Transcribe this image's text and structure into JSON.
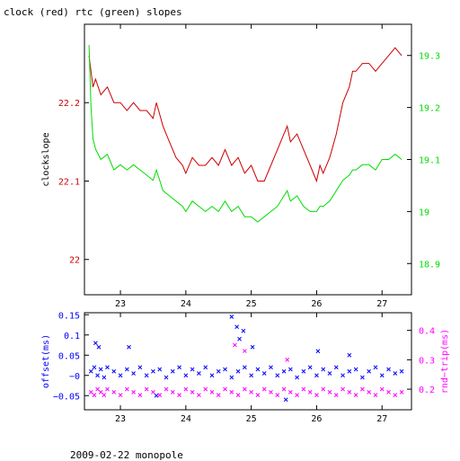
{
  "page": {
    "title": "clock (red) rtc (green) slopes",
    "footer": "2009-02-22 monopole"
  },
  "colors": {
    "clock": "#cc0000",
    "rtc": "#00dd00",
    "offset": "#0000ff",
    "rndtrip": "#ff00ff",
    "axis": "#000000"
  },
  "chart_data": [
    {
      "type": "line",
      "title": "clock (red) rtc (green) slopes",
      "ylabel": "clockslope",
      "y2label": "",
      "xlim": [
        22.45,
        27.45
      ],
      "ylim": [
        21.955,
        22.3
      ],
      "y2lim": [
        18.84,
        19.36
      ],
      "xticks": [
        23,
        24,
        25,
        26,
        27
      ],
      "yticks": [
        22,
        22.1,
        22.2
      ],
      "y2ticks": [
        18.9,
        19,
        19.1,
        19.2,
        19.3
      ],
      "series": [
        {
          "name": "clock",
          "axis": "left",
          "x": [
            22.52,
            22.55,
            22.58,
            22.62,
            22.7,
            22.8,
            22.9,
            23.0,
            23.1,
            23.2,
            23.3,
            23.4,
            23.5,
            23.55,
            23.65,
            23.75,
            23.85,
            23.95,
            24.0,
            24.1,
            24.2,
            24.3,
            24.4,
            24.5,
            24.6,
            24.7,
            24.8,
            24.9,
            25.0,
            25.1,
            25.2,
            25.3,
            25.4,
            25.5,
            25.55,
            25.6,
            25.7,
            25.8,
            25.9,
            26.0,
            26.05,
            26.1,
            26.2,
            26.3,
            26.4,
            26.5,
            26.55,
            26.6,
            26.7,
            26.8,
            26.9,
            27.0,
            27.1,
            27.2,
            27.3
          ],
          "y": [
            22.26,
            22.24,
            22.22,
            22.23,
            22.21,
            22.22,
            22.2,
            22.2,
            22.19,
            22.2,
            22.19,
            22.19,
            22.18,
            22.2,
            22.17,
            22.15,
            22.13,
            22.12,
            22.11,
            22.13,
            22.12,
            22.12,
            22.13,
            22.12,
            22.14,
            22.12,
            22.13,
            22.11,
            22.12,
            22.1,
            22.1,
            22.12,
            22.14,
            22.16,
            22.17,
            22.15,
            22.16,
            22.14,
            22.12,
            22.1,
            22.12,
            22.11,
            22.13,
            22.16,
            22.2,
            22.22,
            22.24,
            22.24,
            22.25,
            22.25,
            22.24,
            22.25,
            22.26,
            22.27,
            22.26
          ]
        },
        {
          "name": "rtc",
          "axis": "right",
          "x": [
            22.52,
            22.55,
            22.58,
            22.62,
            22.7,
            22.8,
            22.9,
            23.0,
            23.1,
            23.2,
            23.3,
            23.4,
            23.5,
            23.55,
            23.65,
            23.75,
            23.85,
            23.95,
            24.0,
            24.1,
            24.2,
            24.3,
            24.4,
            24.5,
            24.6,
            24.7,
            24.8,
            24.9,
            25.0,
            25.1,
            25.2,
            25.3,
            25.4,
            25.5,
            25.55,
            25.6,
            25.7,
            25.8,
            25.9,
            26.0,
            26.05,
            26.1,
            26.2,
            26.3,
            26.4,
            26.5,
            26.55,
            26.6,
            26.7,
            26.8,
            26.9,
            27.0,
            27.1,
            27.2,
            27.3
          ],
          "y": [
            19.32,
            19.2,
            19.14,
            19.12,
            19.1,
            19.11,
            19.08,
            19.09,
            19.08,
            19.09,
            19.08,
            19.07,
            19.06,
            19.08,
            19.04,
            19.03,
            19.02,
            19.01,
            19.0,
            19.02,
            19.01,
            19.0,
            19.01,
            19.0,
            19.02,
            19.0,
            19.01,
            18.99,
            18.99,
            18.98,
            18.99,
            19.0,
            19.01,
            19.03,
            19.04,
            19.02,
            19.03,
            19.01,
            19.0,
            19.0,
            19.01,
            19.01,
            19.02,
            19.04,
            19.06,
            19.07,
            19.08,
            19.08,
            19.09,
            19.09,
            19.08,
            19.1,
            19.1,
            19.11,
            19.1
          ]
        }
      ]
    },
    {
      "type": "scatter",
      "ylabel": "offset(ms)",
      "y2label": "rnd−trip(ms)",
      "xlim": [
        22.45,
        27.45
      ],
      "ylim": [
        -0.085,
        0.155
      ],
      "y2lim": [
        0.13,
        0.46
      ],
      "xticks": [
        23,
        24,
        25,
        26,
        27
      ],
      "yticks": [
        -0.05,
        0,
        0.05,
        0.1,
        0.15
      ],
      "yticklabels": [
        "−0.05",
        "−0",
        "0.05",
        "0.1",
        "0.15"
      ],
      "y2ticks": [
        0.2,
        0.3,
        0.4
      ],
      "series": [
        {
          "name": "offset",
          "axis": "left",
          "marker": "x",
          "x": [
            22.55,
            22.6,
            22.65,
            22.7,
            22.75,
            22.8,
            22.9,
            23.0,
            23.1,
            23.2,
            23.3,
            23.4,
            23.5,
            23.6,
            23.7,
            23.8,
            23.9,
            24.0,
            24.1,
            24.2,
            24.3,
            24.4,
            24.5,
            24.6,
            24.7,
            24.8,
            24.9,
            25.0,
            25.1,
            25.2,
            25.3,
            25.4,
            25.5,
            25.6,
            25.7,
            25.8,
            25.9,
            26.0,
            26.1,
            26.2,
            26.3,
            26.4,
            26.5,
            26.6,
            26.7,
            26.8,
            26.9,
            27.0,
            27.1,
            27.2,
            27.3,
            22.62,
            22.67,
            23.13,
            24.7,
            24.78,
            24.82,
            24.88,
            25.02,
            26.02,
            26.5,
            23.55,
            25.53
          ],
          "y": [
            0.01,
            0.02,
            0.0,
            0.015,
            -0.005,
            0.02,
            0.01,
            0.0,
            0.015,
            0.005,
            0.02,
            0.0,
            0.01,
            0.015,
            -0.005,
            0.01,
            0.02,
            0.0,
            0.015,
            0.005,
            0.02,
            0.0,
            0.01,
            0.015,
            -0.005,
            0.01,
            0.02,
            0.0,
            0.015,
            0.005,
            0.02,
            0.0,
            0.01,
            0.015,
            -0.005,
            0.01,
            0.02,
            0.0,
            0.015,
            0.005,
            0.02,
            0.0,
            0.01,
            0.015,
            -0.005,
            0.01,
            0.02,
            0.0,
            0.015,
            0.005,
            0.01,
            0.08,
            0.07,
            0.07,
            0.145,
            0.12,
            0.09,
            0.11,
            0.07,
            0.06,
            0.05,
            -0.05,
            -0.06
          ]
        },
        {
          "name": "rndtrip",
          "axis": "right",
          "marker": "x",
          "x": [
            22.55,
            22.6,
            22.65,
            22.7,
            22.75,
            22.8,
            22.9,
            23.0,
            23.1,
            23.2,
            23.3,
            23.4,
            23.5,
            23.6,
            23.7,
            23.8,
            23.9,
            24.0,
            24.1,
            24.2,
            24.3,
            24.4,
            24.5,
            24.6,
            24.7,
            24.8,
            24.9,
            25.0,
            25.1,
            25.2,
            25.3,
            25.4,
            25.5,
            25.6,
            25.7,
            25.8,
            25.9,
            26.0,
            26.1,
            26.2,
            26.3,
            26.4,
            26.5,
            26.6,
            26.7,
            26.8,
            26.9,
            27.0,
            27.1,
            27.2,
            27.3,
            24.75,
            24.9,
            25.55
          ],
          "y": [
            0.19,
            0.18,
            0.2,
            0.19,
            0.18,
            0.2,
            0.19,
            0.18,
            0.2,
            0.19,
            0.18,
            0.2,
            0.19,
            0.18,
            0.2,
            0.19,
            0.18,
            0.2,
            0.19,
            0.18,
            0.2,
            0.19,
            0.18,
            0.2,
            0.19,
            0.18,
            0.2,
            0.19,
            0.18,
            0.2,
            0.19,
            0.18,
            0.2,
            0.19,
            0.18,
            0.2,
            0.19,
            0.18,
            0.2,
            0.19,
            0.18,
            0.2,
            0.19,
            0.18,
            0.2,
            0.19,
            0.18,
            0.2,
            0.19,
            0.18,
            0.19,
            0.35,
            0.33,
            0.3
          ]
        }
      ]
    }
  ]
}
